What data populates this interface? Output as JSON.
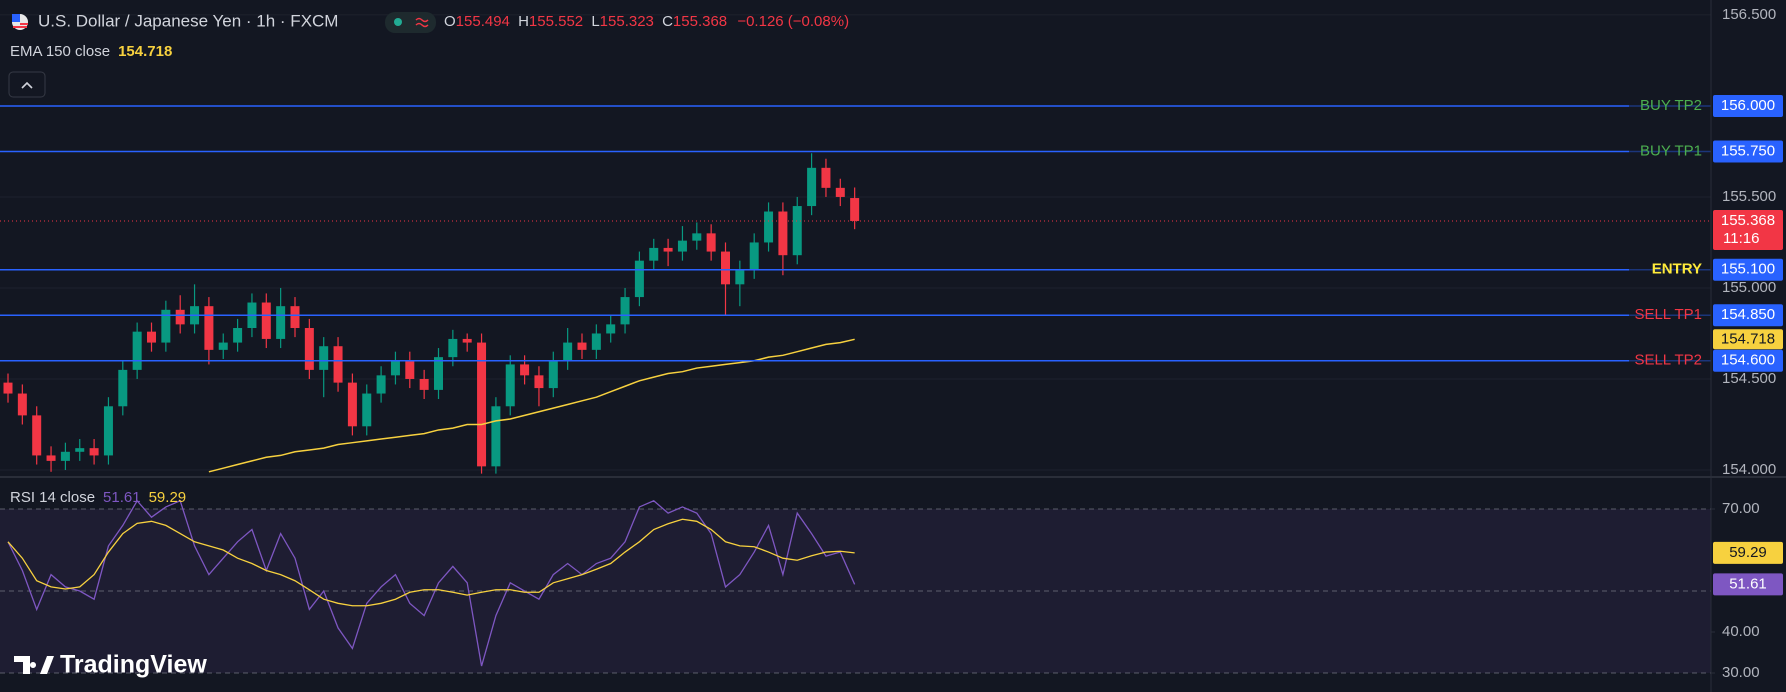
{
  "header": {
    "title": "U.S. Dollar / Japanese Yen · 1h · FXCM",
    "ohlc_letters": [
      "O",
      "H",
      "L",
      "C"
    ],
    "change": "−0.126 (−0.08%)"
  },
  "chart_data": [
    {
      "type": "candlestick",
      "open": [
        154.48,
        154.42,
        154.3,
        154.08,
        154.05,
        154.1,
        154.12,
        154.08,
        154.35,
        154.55,
        154.76,
        154.7,
        154.88,
        154.8,
        154.9,
        154.66,
        154.7,
        154.78,
        154.92,
        154.72,
        154.9,
        154.78,
        154.55,
        154.68,
        154.48,
        154.24,
        154.42,
        154.52,
        154.6,
        154.5,
        154.44,
        154.62,
        154.72,
        154.7,
        154.02,
        154.35,
        154.58,
        154.52,
        154.45,
        154.6,
        154.7,
        154.66,
        154.75,
        154.8,
        154.95,
        155.15,
        155.22,
        155.2,
        155.26,
        155.3,
        155.2,
        155.02,
        155.1,
        155.25,
        155.42,
        155.18,
        155.45,
        155.66,
        155.55,
        155.494
      ],
      "high": [
        154.53,
        154.47,
        154.35,
        154.13,
        154.15,
        154.17,
        154.17,
        154.4,
        154.6,
        154.81,
        154.81,
        154.93,
        154.96,
        155.02,
        154.95,
        154.75,
        154.83,
        154.97,
        154.97,
        155.0,
        154.95,
        154.83,
        154.73,
        154.73,
        154.53,
        154.47,
        154.57,
        154.65,
        154.65,
        154.55,
        154.67,
        154.77,
        154.75,
        154.75,
        154.4,
        154.63,
        154.63,
        154.57,
        154.65,
        154.78,
        154.75,
        154.8,
        154.85,
        155.0,
        155.2,
        155.27,
        155.27,
        155.34,
        155.36,
        155.35,
        155.25,
        155.15,
        155.3,
        155.47,
        155.47,
        155.5,
        155.74,
        155.71,
        155.6,
        155.552
      ],
      "low": [
        154.37,
        154.25,
        154.03,
        153.99,
        154.0,
        154.05,
        154.03,
        154.03,
        154.3,
        154.5,
        154.65,
        154.65,
        154.75,
        154.75,
        154.58,
        154.61,
        154.65,
        154.73,
        154.67,
        154.67,
        154.73,
        154.5,
        154.4,
        154.43,
        154.19,
        154.19,
        154.37,
        154.47,
        154.45,
        154.39,
        154.39,
        154.57,
        154.65,
        153.98,
        153.98,
        154.3,
        154.47,
        154.35,
        154.4,
        154.55,
        154.61,
        154.61,
        154.7,
        154.75,
        154.9,
        155.1,
        155.12,
        155.15,
        155.21,
        155.15,
        154.85,
        154.9,
        155.05,
        155.2,
        155.07,
        155.13,
        155.4,
        155.5,
        155.45,
        155.323
      ],
      "close": [
        154.42,
        154.3,
        154.08,
        154.05,
        154.1,
        154.12,
        154.08,
        154.35,
        154.55,
        154.76,
        154.7,
        154.88,
        154.8,
        154.9,
        154.66,
        154.7,
        154.78,
        154.92,
        154.72,
        154.9,
        154.78,
        154.55,
        154.68,
        154.48,
        154.24,
        154.42,
        154.52,
        154.6,
        154.5,
        154.44,
        154.62,
        154.72,
        154.7,
        154.02,
        154.35,
        154.58,
        154.52,
        154.45,
        154.6,
        154.7,
        154.66,
        154.75,
        154.8,
        154.95,
        155.15,
        155.22,
        155.2,
        155.26,
        155.3,
        155.2,
        155.02,
        155.1,
        155.25,
        155.42,
        155.18,
        155.45,
        155.66,
        155.55,
        155.5,
        155.368
      ],
      "up_color": "#089981",
      "down_color": "#f23645",
      "ylim": [
        153.967,
        156.582
      ],
      "yticks": [
        {
          "value": 156.5,
          "label": "156.500"
        },
        {
          "value": 155.5,
          "label": "155.500"
        },
        {
          "value": 155,
          "label": "155.000"
        },
        {
          "value": 154.5,
          "label": "154.500"
        },
        {
          "value": 154,
          "label": "154.000"
        }
      ],
      "grid": true,
      "overlay": {
        "name": "EMA 150 close",
        "color": "#f7d13f",
        "values": [
          null,
          null,
          null,
          null,
          null,
          null,
          null,
          null,
          null,
          null,
          null,
          null,
          null,
          null,
          153.99,
          154.01,
          154.03,
          154.05,
          154.07,
          154.08,
          154.1,
          154.11,
          154.12,
          154.14,
          154.15,
          154.16,
          154.17,
          154.18,
          154.19,
          154.2,
          154.22,
          154.23,
          154.25,
          154.25,
          154.27,
          154.28,
          154.3,
          154.32,
          154.34,
          154.36,
          154.38,
          154.4,
          154.43,
          154.46,
          154.49,
          154.51,
          154.53,
          154.54,
          154.56,
          154.57,
          154.58,
          154.59,
          154.6,
          154.62,
          154.63,
          154.65,
          154.67,
          154.69,
          154.7,
          154.718
        ]
      },
      "levels": {
        "names": [
          "BUY TP2",
          "BUY TP1",
          "ENTRY",
          "SELL TP1",
          "SELL TP2"
        ],
        "values": [
          156.0,
          155.75,
          155.1,
          154.85,
          154.6
        ],
        "value_labels": [
          "156.000",
          "155.750",
          "155.100",
          "154.850",
          "154.600"
        ],
        "colors": [
          "#4caf50",
          "#4caf50",
          "#ffeb3b",
          "#f23645",
          "#f23645"
        ],
        "line_color": "#2962ff"
      },
      "countdown": "11:16"
    },
    {
      "type": "line",
      "title": "RSI 14 close",
      "series": [
        {
          "color": "#7e57c2",
          "values": [
            62,
            55,
            45.5,
            54,
            51,
            50,
            48,
            61,
            66,
            72,
            68,
            70.5,
            72,
            61,
            54,
            58,
            62,
            65,
            55,
            64,
            58,
            45.5,
            50,
            41,
            36,
            47,
            51,
            54,
            47,
            44,
            52,
            56,
            52,
            31.7,
            44,
            52,
            50,
            48,
            54,
            56.7,
            54,
            56.7,
            58,
            62,
            70.5,
            72,
            69,
            70.5,
            69,
            64,
            51,
            54,
            59.5,
            66,
            54,
            69,
            64,
            58.5,
            59.5,
            51.61
          ]
        },
        {
          "color": "#f7d13f",
          "values": [
            62,
            58,
            52.5,
            51,
            50.5,
            51,
            54,
            59.5,
            64,
            66.5,
            67,
            66,
            64,
            62,
            61,
            60,
            58,
            56.7,
            55,
            54,
            52.5,
            50.3,
            48,
            47,
            46.4,
            46.4,
            47,
            48,
            49.7,
            50.3,
            50.3,
            49.7,
            49,
            49.7,
            50.3,
            50.3,
            49.7,
            49.7,
            52,
            53,
            54,
            55.3,
            56.7,
            59.5,
            62,
            65,
            66.4,
            67.5,
            67,
            65,
            62,
            61,
            60.8,
            59.5,
            58,
            57.5,
            58.6,
            59.5,
            59.7,
            59.29
          ]
        }
      ],
      "ylim": [
        25.37,
        77.56
      ],
      "yticks": [
        {
          "value": 70,
          "label": "70.00"
        },
        {
          "value": 40,
          "label": "40.00"
        },
        {
          "value": 30,
          "label": "30.00"
        }
      ],
      "band": [
        30,
        70
      ],
      "hlines": [
        70,
        50,
        30
      ]
    }
  ],
  "branding": "TradingView"
}
